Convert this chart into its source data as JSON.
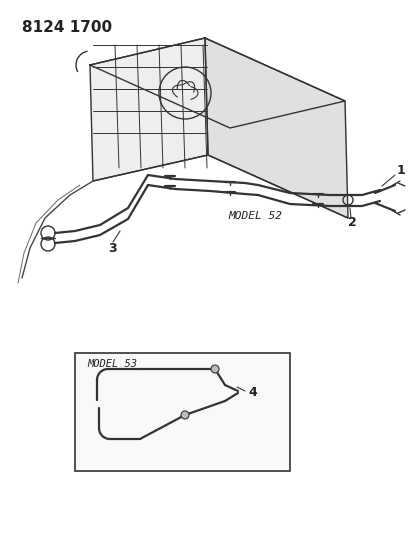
{
  "title_code": "8124 1700",
  "title_fontsize": 11,
  "title_fontweight": "bold",
  "bg_color": "#ffffff",
  "line_color": "#333333",
  "label_color": "#222222",
  "model52_label": "MODEL 52",
  "model53_label": "MODEL 53",
  "part_labels": [
    "1",
    "2",
    "3",
    "4"
  ],
  "fig_width": 4.1,
  "fig_height": 5.33,
  "dpi": 100
}
